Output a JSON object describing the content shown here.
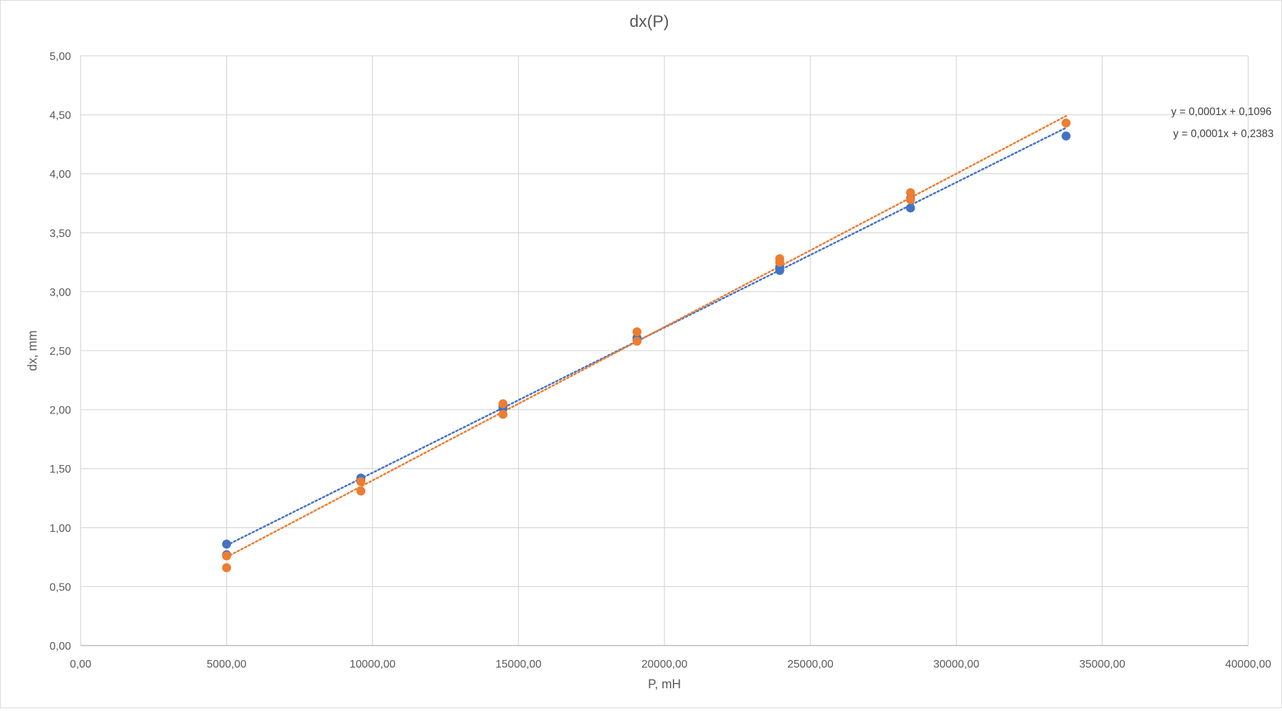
{
  "chart_data": {
    "type": "scatter",
    "title": "dx(P)",
    "xlabel": "P, mH",
    "ylabel": "dx, mm",
    "xlim": [
      0,
      40000
    ],
    "ylim": [
      0,
      5
    ],
    "xticks": [
      0,
      5000,
      10000,
      15000,
      20000,
      25000,
      30000,
      35000,
      40000
    ],
    "xtick_labels": [
      "0,00",
      "5000,00",
      "10000,00",
      "15000,00",
      "20000,00",
      "25000,00",
      "30000,00",
      "35000,00",
      "40000,00"
    ],
    "yticks": [
      0,
      0.5,
      1,
      1.5,
      2,
      2.5,
      3,
      3.5,
      4,
      4.5,
      5
    ],
    "ytick_labels": [
      "0,00",
      "0,50",
      "1,00",
      "1,50",
      "2,00",
      "2,50",
      "3,00",
      "3,50",
      "4,00",
      "4,50",
      "5,00"
    ],
    "grid": true,
    "legend": "none",
    "series": [
      {
        "color": "#4472C4",
        "points": [
          {
            "x": 5000,
            "y": 0.86
          },
          {
            "x": 5000,
            "y": 0.77
          },
          {
            "x": 9600,
            "y": 1.42
          },
          {
            "x": 9600,
            "y": 1.4
          },
          {
            "x": 14470,
            "y": 2.03
          },
          {
            "x": 14470,
            "y": 2.01
          },
          {
            "x": 19060,
            "y": 2.61
          },
          {
            "x": 19060,
            "y": 2.59
          },
          {
            "x": 23950,
            "y": 3.18
          },
          {
            "x": 23950,
            "y": 3.21
          },
          {
            "x": 28430,
            "y": 3.71
          },
          {
            "x": 28430,
            "y": 3.79
          },
          {
            "x": 33760,
            "y": 4.32
          }
        ],
        "trendline": {
          "x_start": 5000,
          "y_start": 0.85,
          "x_end": 33760,
          "y_end": 4.39,
          "equation": "y = 0,0001x + 0,2383"
        }
      },
      {
        "color": "#ED7D31",
        "points": [
          {
            "x": 5000,
            "y": 0.76
          },
          {
            "x": 5000,
            "y": 0.66
          },
          {
            "x": 9600,
            "y": 1.39
          },
          {
            "x": 9600,
            "y": 1.31
          },
          {
            "x": 14470,
            "y": 2.05
          },
          {
            "x": 14470,
            "y": 1.96
          },
          {
            "x": 19060,
            "y": 2.66
          },
          {
            "x": 19060,
            "y": 2.58
          },
          {
            "x": 23950,
            "y": 3.28
          },
          {
            "x": 23950,
            "y": 3.25
          },
          {
            "x": 28430,
            "y": 3.84
          },
          {
            "x": 28430,
            "y": 3.78
          },
          {
            "x": 33760,
            "y": 4.43
          }
        ],
        "trendline": {
          "x_start": 5000,
          "y_start": 0.75,
          "x_end": 33760,
          "y_end": 4.49,
          "equation": "y = 0,0001x + 0,1096"
        }
      }
    ]
  }
}
